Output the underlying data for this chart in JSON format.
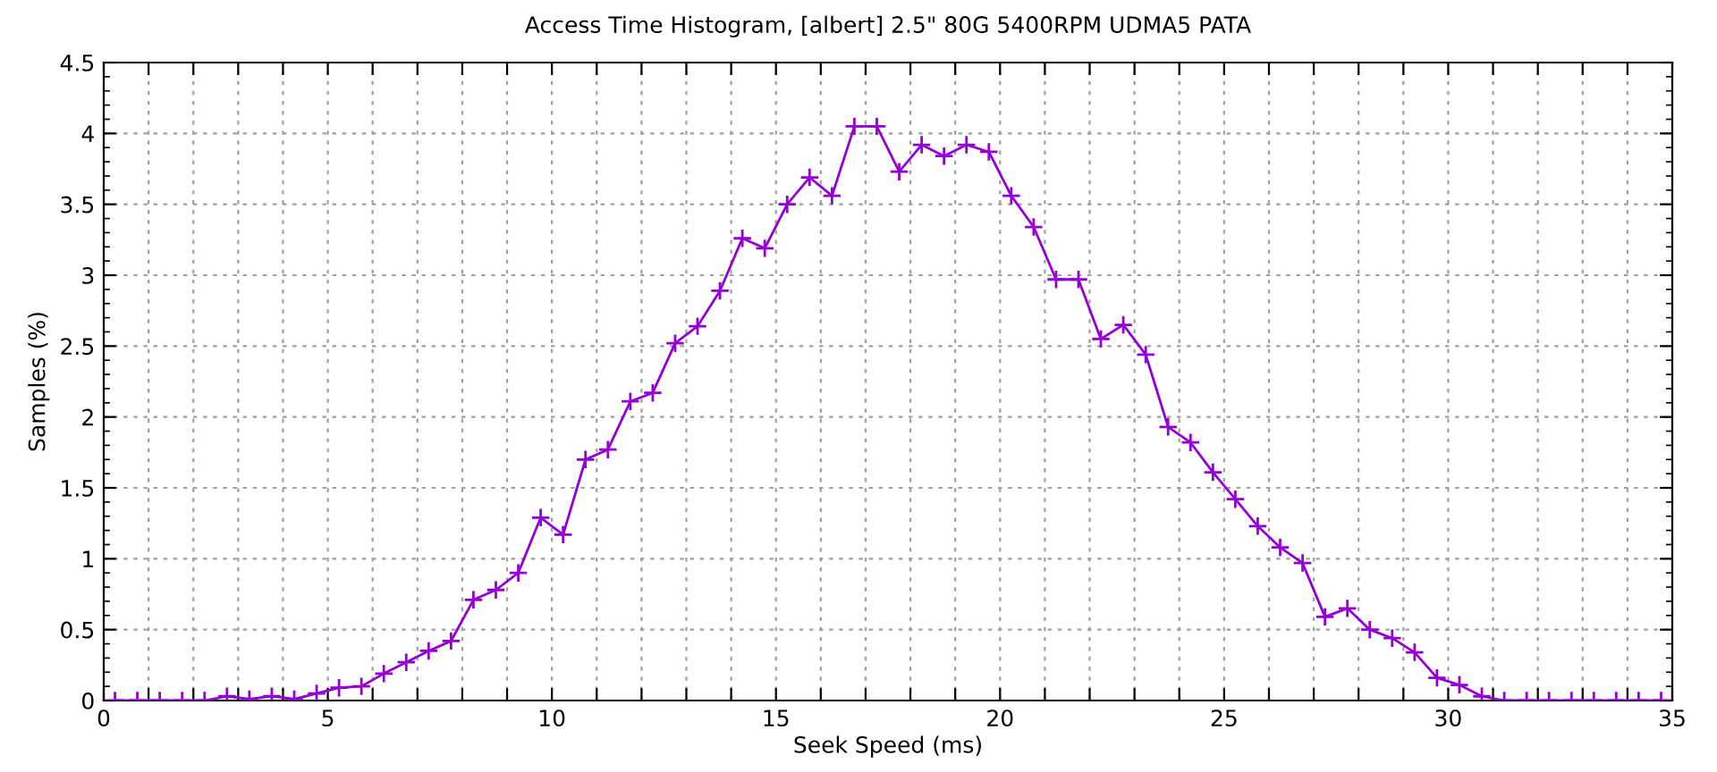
{
  "chart_data": {
    "type": "line",
    "title": "Access Time Histogram, [albert] 2.5\" 80G 5400RPM UDMA5 PATA",
    "xlabel": "Seek Speed (ms)",
    "ylabel": "Samples (%)",
    "x": [
      0.25,
      0.75,
      1.25,
      1.75,
      2.25,
      2.75,
      3.25,
      3.75,
      4.25,
      4.75,
      5.25,
      5.75,
      6.25,
      6.75,
      7.25,
      7.75,
      8.25,
      8.75,
      9.25,
      9.75,
      10.25,
      10.75,
      11.25,
      11.75,
      12.25,
      12.75,
      13.25,
      13.75,
      14.25,
      14.75,
      15.25,
      15.75,
      16.25,
      16.75,
      17.25,
      17.75,
      18.25,
      18.75,
      19.25,
      19.75,
      20.25,
      20.75,
      21.25,
      21.75,
      22.25,
      22.75,
      23.25,
      23.75,
      24.25,
      24.75,
      25.25,
      25.75,
      26.25,
      26.75,
      27.25,
      27.75,
      28.25,
      28.75,
      29.25,
      29.75,
      30.25,
      30.75,
      31.25,
      31.75,
      32.25,
      32.75,
      33.25,
      33.75,
      34.25,
      34.75
    ],
    "series": [
      {
        "color": "#9400d3",
        "values": [
          0,
          0,
          0,
          0,
          0,
          0.03,
          0.01,
          0.03,
          0.01,
          0.05,
          0.09,
          0.1,
          0.19,
          0.27,
          0.35,
          0.42,
          0.71,
          0.78,
          0.9,
          1.29,
          1.17,
          1.7,
          1.77,
          2.11,
          2.17,
          2.52,
          2.64,
          2.89,
          3.26,
          3.19,
          3.5,
          3.69,
          3.56,
          4.05,
          4.05,
          3.73,
          3.92,
          3.84,
          3.92,
          3.87,
          3.56,
          3.34,
          2.97,
          2.97,
          2.55,
          2.65,
          2.44,
          1.93,
          1.82,
          1.61,
          1.42,
          1.23,
          1.08,
          0.97,
          0.59,
          0.65,
          0.5,
          0.44,
          0.34,
          0.16,
          0.11,
          0.03,
          0,
          0,
          0,
          0,
          0,
          0,
          0,
          0
        ]
      }
    ],
    "xlim": [
      0,
      35
    ],
    "ylim": [
      0,
      4.5
    ],
    "xticks": [
      0,
      {
        "value": 1,
        "label": null
      },
      {
        "value": 2,
        "label": null
      },
      {
        "value": 3,
        "label": null
      },
      {
        "value": 4,
        "label": null
      },
      5,
      {
        "value": 6,
        "label": null
      },
      {
        "value": 7,
        "label": null
      },
      {
        "value": 8,
        "label": null
      },
      {
        "value": 9,
        "label": null
      },
      10,
      {
        "value": 11,
        "label": null
      },
      {
        "value": 12,
        "label": null
      },
      {
        "value": 13,
        "label": null
      },
      {
        "value": 14,
        "label": null
      },
      15,
      {
        "value": 16,
        "label": null
      },
      {
        "value": 17,
        "label": null
      },
      {
        "value": 18,
        "label": null
      },
      {
        "value": 19,
        "label": null
      },
      20,
      {
        "value": 21,
        "label": null
      },
      {
        "value": 22,
        "label": null
      },
      {
        "value": 23,
        "label": null
      },
      {
        "value": 24,
        "label": null
      },
      25,
      {
        "value": 26,
        "label": null
      },
      {
        "value": 27,
        "label": null
      },
      {
        "value": 28,
        "label": null
      },
      {
        "value": 29,
        "label": null
      },
      30,
      {
        "value": 31,
        "label": null
      },
      {
        "value": 32,
        "label": null
      },
      {
        "value": 33,
        "label": null
      },
      {
        "value": 34,
        "label": null
      },
      35
    ],
    "yticks": [
      0,
      0.5,
      1,
      1.5,
      2,
      2.5,
      3,
      3.5,
      4,
      4.5
    ],
    "grid": true,
    "marker": "cross",
    "line_style": "solid",
    "legend": false
  }
}
